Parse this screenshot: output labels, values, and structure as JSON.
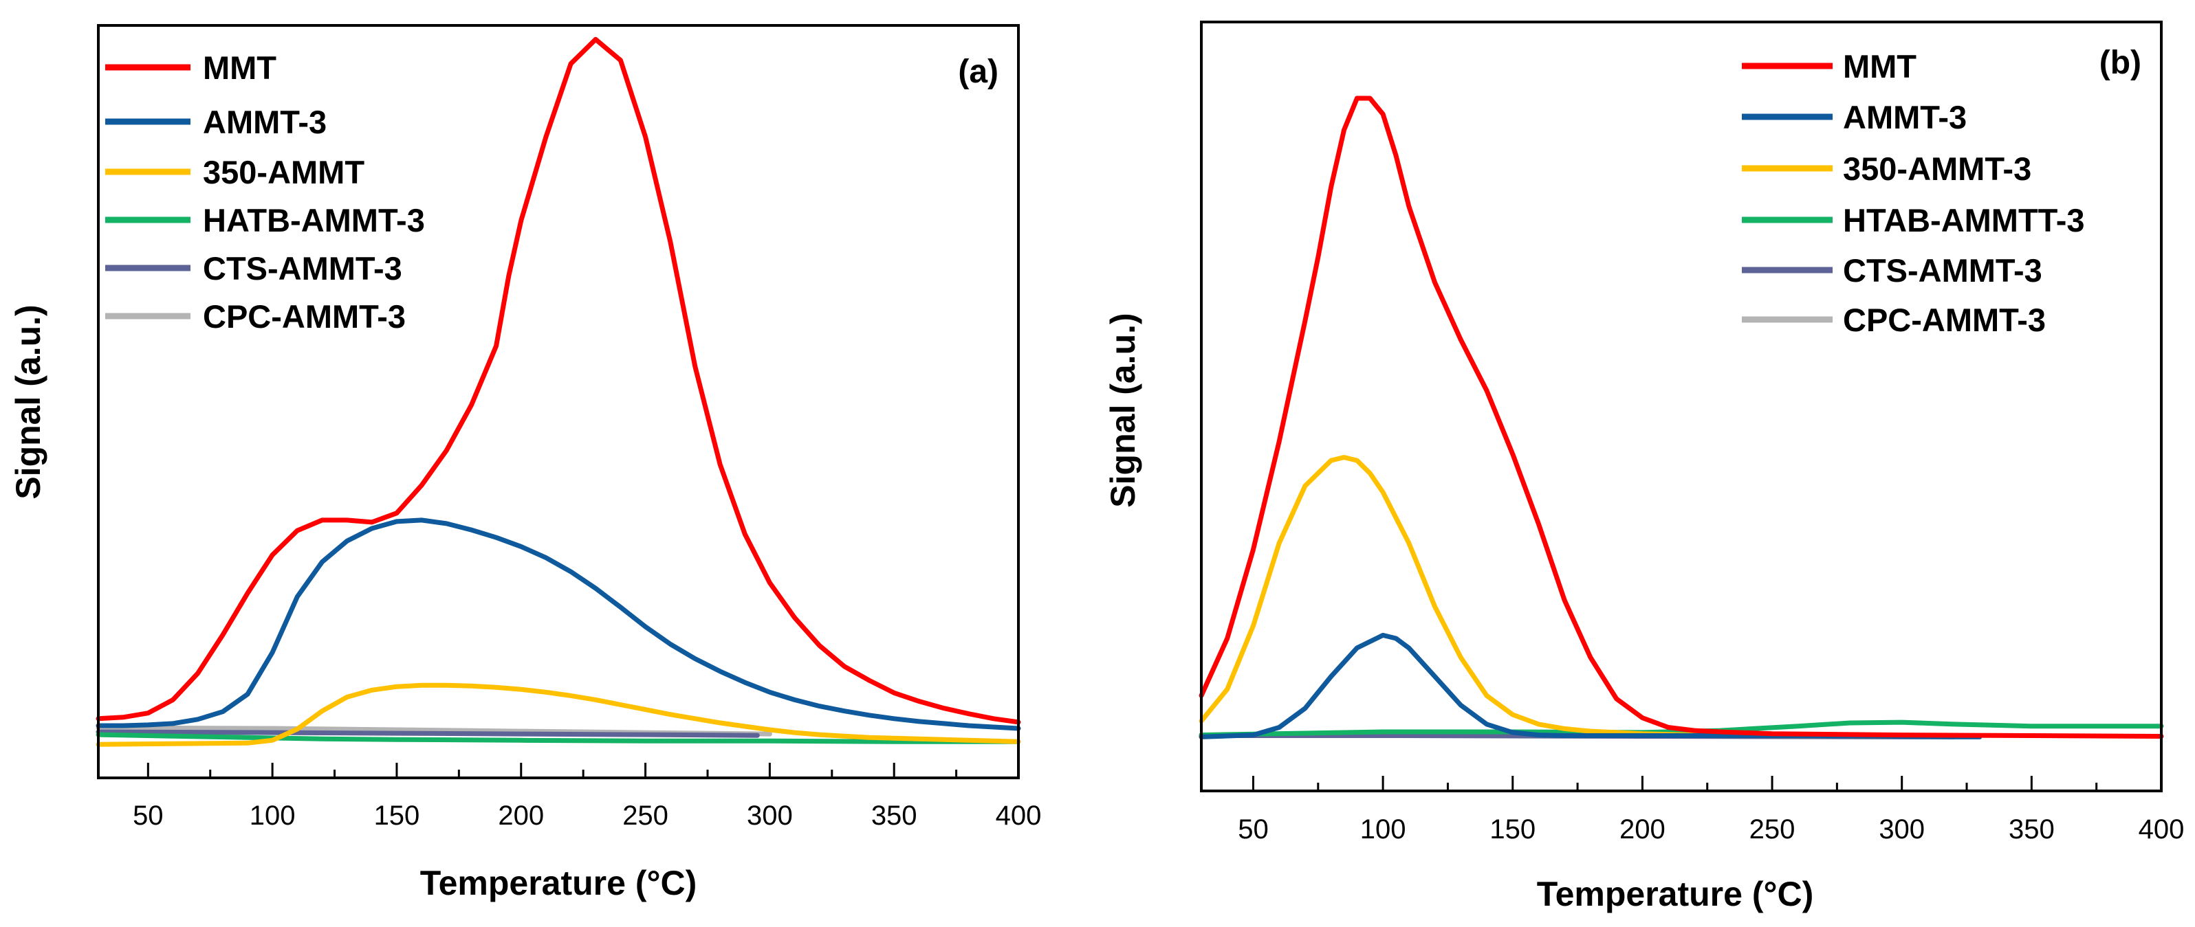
{
  "chart_data": [
    {
      "type": "line",
      "panel": "(a)",
      "title": "",
      "xlabel": "Temperature (°C)",
      "ylabel": "Signal (a.u.)",
      "xlim": [
        30,
        400
      ],
      "ylim": [
        -0.06,
        1.02
      ],
      "xticks": [
        50,
        100,
        150,
        200,
        250,
        300,
        350,
        400
      ],
      "yticks_shown": false,
      "legend_position": "top-left",
      "series": [
        {
          "name": "MMT",
          "color": "#ff0000",
          "x": [
            30,
            40,
            50,
            60,
            70,
            80,
            90,
            100,
            110,
            120,
            130,
            140,
            150,
            160,
            170,
            180,
            190,
            195,
            200,
            210,
            220,
            230,
            240,
            250,
            260,
            270,
            280,
            290,
            300,
            310,
            320,
            330,
            340,
            350,
            360,
            370,
            380,
            390,
            400
          ],
          "y": [
            0.025,
            0.027,
            0.033,
            0.052,
            0.09,
            0.145,
            0.205,
            0.26,
            0.295,
            0.31,
            0.31,
            0.307,
            0.32,
            0.36,
            0.41,
            0.475,
            0.56,
            0.66,
            0.74,
            0.86,
            0.965,
            1.0,
            0.97,
            0.86,
            0.71,
            0.53,
            0.39,
            0.29,
            0.22,
            0.17,
            0.13,
            0.1,
            0.08,
            0.062,
            0.05,
            0.04,
            0.032,
            0.025,
            0.02
          ]
        },
        {
          "name": "AMMT-3",
          "color": "#0f5a9c",
          "x": [
            30,
            40,
            50,
            60,
            70,
            80,
            90,
            100,
            110,
            120,
            130,
            140,
            150,
            160,
            170,
            180,
            190,
            200,
            210,
            220,
            230,
            240,
            250,
            260,
            270,
            280,
            290,
            300,
            310,
            320,
            330,
            340,
            350,
            360,
            370,
            380,
            390,
            400
          ],
          "y": [
            0.015,
            0.015,
            0.016,
            0.018,
            0.024,
            0.035,
            0.06,
            0.12,
            0.2,
            0.25,
            0.28,
            0.298,
            0.308,
            0.31,
            0.305,
            0.296,
            0.285,
            0.272,
            0.256,
            0.236,
            0.212,
            0.185,
            0.157,
            0.132,
            0.111,
            0.093,
            0.077,
            0.063,
            0.052,
            0.043,
            0.036,
            0.03,
            0.025,
            0.021,
            0.018,
            0.015,
            0.013,
            0.011
          ]
        },
        {
          "name": "350-AMMT",
          "color": "#ffc000",
          "x": [
            30,
            60,
            90,
            100,
            110,
            120,
            130,
            140,
            150,
            160,
            170,
            180,
            190,
            200,
            210,
            220,
            230,
            240,
            250,
            260,
            270,
            280,
            290,
            300,
            310,
            320,
            330,
            340,
            350,
            360,
            370,
            380,
            390,
            400
          ],
          "y": [
            -0.012,
            -0.011,
            -0.01,
            -0.006,
            0.01,
            0.036,
            0.056,
            0.066,
            0.071,
            0.073,
            0.073,
            0.072,
            0.07,
            0.067,
            0.063,
            0.058,
            0.052,
            0.045,
            0.038,
            0.031,
            0.025,
            0.019,
            0.014,
            0.009,
            0.005,
            0.002,
            0,
            -0.002,
            -0.003,
            -0.004,
            -0.005,
            -0.006,
            -0.007,
            -0.008
          ]
        },
        {
          "name": "HATB-AMMT-3",
          "color": "#13b265",
          "x": [
            30,
            60,
            90,
            120,
            150,
            200,
            250,
            300,
            350,
            400
          ],
          "y": [
            0.002,
            0.0,
            -0.002,
            -0.004,
            -0.005,
            -0.006,
            -0.007,
            -0.007,
            -0.008,
            -0.008
          ]
        },
        {
          "name": "CTS-AMMT-3",
          "color": "#5d6396",
          "x": [
            30,
            100,
            150,
            200,
            250,
            295
          ],
          "y": [
            0.006,
            0.005,
            0.004,
            0.003,
            0.002,
            0.001
          ]
        },
        {
          "name": "CPC-AMMT-3",
          "color": "#b4b4b4",
          "x": [
            30,
            100,
            150,
            200,
            250,
            300
          ],
          "y": [
            0.012,
            0.011,
            0.009,
            0.007,
            0.005,
            0.003
          ]
        }
      ]
    },
    {
      "type": "line",
      "panel": "(b)",
      "title": "",
      "xlabel": "Temperature (°C)",
      "ylabel": "Signal (a.u.)",
      "xlim": [
        30,
        400
      ],
      "ylim": [
        -0.09,
        1.12
      ],
      "xticks": [
        50,
        100,
        150,
        200,
        250,
        300,
        350,
        400
      ],
      "yticks_shown": false,
      "legend_position": "top-right",
      "series": [
        {
          "name": "MMT",
          "color": "#ff0000",
          "x": [
            30,
            40,
            50,
            60,
            70,
            75,
            80,
            85,
            90,
            95,
            100,
            105,
            110,
            120,
            130,
            140,
            150,
            160,
            170,
            180,
            190,
            200,
            210,
            220,
            230,
            250,
            300,
            350,
            400
          ],
          "y": [
            0.06,
            0.15,
            0.29,
            0.46,
            0.65,
            0.75,
            0.86,
            0.95,
            1.0,
            1.0,
            0.975,
            0.91,
            0.83,
            0.71,
            0.62,
            0.54,
            0.44,
            0.33,
            0.21,
            0.12,
            0.055,
            0.025,
            0.01,
            0.005,
            0.003,
            0.0,
            -0.002,
            -0.003,
            -0.004
          ]
        },
        {
          "name": "AMMT-3",
          "color": "#0f5a9c",
          "x": [
            30,
            50,
            60,
            70,
            80,
            90,
            100,
            105,
            110,
            120,
            130,
            140,
            150,
            160,
            170,
            180,
            200,
            250,
            300,
            320,
            330
          ],
          "y": [
            -0.005,
            -0.002,
            0.01,
            0.04,
            0.09,
            0.135,
            0.155,
            0.15,
            0.135,
            0.09,
            0.045,
            0.015,
            0.002,
            -0.002,
            -0.003,
            -0.003,
            -0.003,
            -0.003,
            -0.004,
            -0.005,
            -0.005
          ]
        },
        {
          "name": "350-AMMT-3",
          "color": "#ffc000",
          "x": [
            30,
            40,
            50,
            60,
            70,
            80,
            85,
            90,
            95,
            100,
            110,
            120,
            130,
            140,
            150,
            160,
            170,
            180,
            190,
            200,
            220,
            250,
            300
          ],
          "y": [
            0.02,
            0.07,
            0.17,
            0.3,
            0.39,
            0.43,
            0.435,
            0.43,
            0.41,
            0.38,
            0.3,
            0.2,
            0.12,
            0.06,
            0.03,
            0.015,
            0.008,
            0.004,
            0.002,
            0.0,
            -0.002,
            -0.003,
            -0.004
          ]
        },
        {
          "name": "HTAB-AMMTT-3",
          "color": "#13b265",
          "x": [
            30,
            100,
            150,
            200,
            230,
            260,
            280,
            300,
            320,
            350,
            400
          ],
          "y": [
            -0.002,
            0.003,
            0.003,
            0.002,
            0.005,
            0.012,
            0.017,
            0.018,
            0.015,
            0.012,
            0.012
          ]
        },
        {
          "name": "CTS-AMMT-3",
          "color": "#5d6396",
          "x": [
            30,
            100,
            200,
            300,
            320
          ],
          "y": [
            -0.003,
            -0.003,
            -0.004,
            -0.005,
            -0.005
          ]
        },
        {
          "name": "CPC-AMMT-3",
          "color": "#b4b4b4",
          "x": [
            30,
            100,
            200,
            300,
            320
          ],
          "y": [
            -0.002,
            -0.002,
            -0.003,
            -0.004,
            -0.004
          ]
        }
      ]
    }
  ]
}
